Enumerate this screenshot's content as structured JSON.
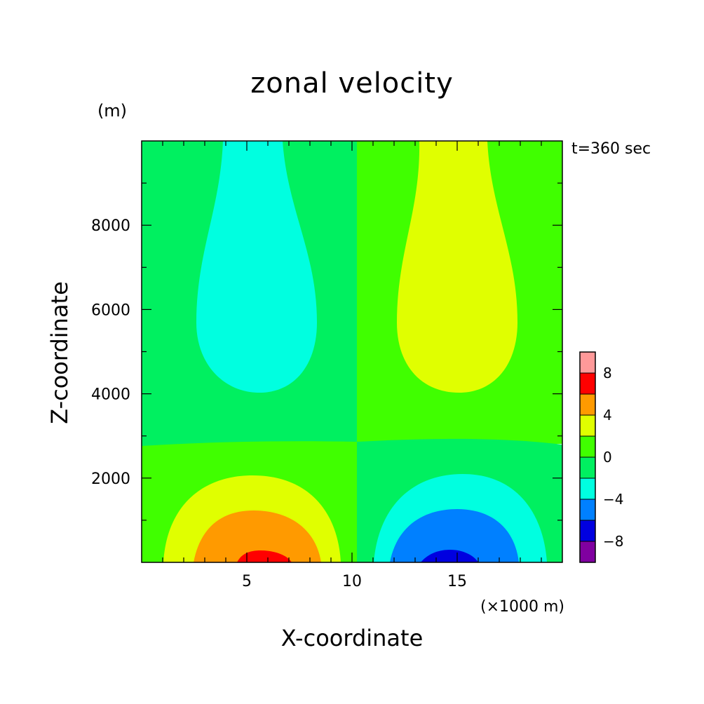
{
  "chart_data": {
    "type": "contour",
    "title": "zonal velocity",
    "xlabel": "X-coordinate",
    "ylabel": "Z-coordinate",
    "x_unit_label": "(×1000 m)",
    "y_unit_label": "(m)",
    "time_label": "t=360 sec",
    "xlim": [
      0,
      20
    ],
    "ylim": [
      0,
      10000
    ],
    "x_ticks": [
      5,
      10,
      15
    ],
    "x_tick_labels": [
      "5",
      "10",
      "15"
    ],
    "y_ticks": [
      2000,
      4000,
      6000,
      8000
    ],
    "y_tick_labels": [
      "2000",
      "4000",
      "6000",
      "8000"
    ],
    "levels": [
      -10,
      -8,
      -6,
      -4,
      -2,
      0,
      2,
      4,
      6,
      8,
      10
    ],
    "colorbar_tick_labels": [
      "−8",
      "−4",
      "0",
      "4",
      "8"
    ],
    "colorbar_colors": [
      "#8000a0",
      "#0000e0",
      "#0080ff",
      "#00ffe0",
      "#00f060",
      "#40ff00",
      "#e0ff00",
      "#ff9a00",
      "#ff0000",
      "#ff9999"
    ],
    "regions": [
      {
        "name": "upper-left-negative-lobe",
        "level_range": [
          -4,
          -2
        ],
        "x": 5.6,
        "z": 6000
      },
      {
        "name": "upper-right-positive-lobe",
        "level_range": [
          2,
          4
        ],
        "x": 14.6,
        "z": 6000
      },
      {
        "name": "lower-left-positive-core",
        "level_range": [
          6,
          10
        ],
        "x": 6,
        "z": 0
      },
      {
        "name": "lower-right-negative-core",
        "level_range": [
          -10,
          -6
        ],
        "x": 14.6,
        "z": 0
      }
    ]
  }
}
